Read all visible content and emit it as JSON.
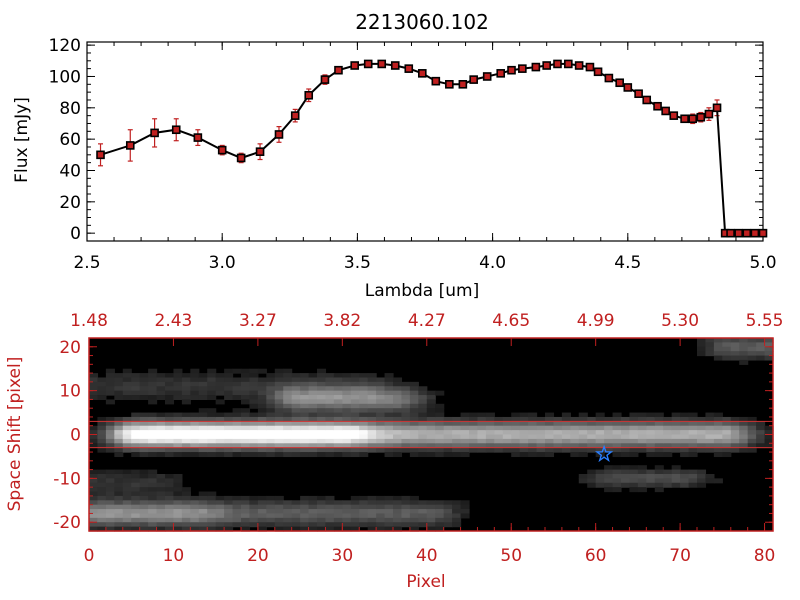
{
  "colors": {
    "axis_black": "#000000",
    "axis_red": "#c02020",
    "series_line": "#000000",
    "series_marker": "#c02020",
    "error_bar": "#c02020",
    "aperture_line": "#d03030",
    "source_star": "#2a7fff",
    "image_background": "#000000"
  },
  "chart_data": [
    {
      "type": "line",
      "title": "2213060.102",
      "xlabel": "Lambda [um]",
      "ylabel": "Flux [mJy]",
      "xlim": [
        2.5,
        5.0
      ],
      "ylim": [
        -5,
        122
      ],
      "x_ticks": [
        "2.5",
        "3.0",
        "3.5",
        "4.0",
        "4.5",
        "5.0"
      ],
      "y_ticks": [
        "0",
        "20",
        "40",
        "60",
        "80",
        "100",
        "120"
      ],
      "grid": false,
      "series": [
        {
          "x": [
            2.55,
            2.66,
            2.75,
            2.83,
            2.91,
            3.0,
            3.07,
            3.14,
            3.21,
            3.27,
            3.32,
            3.38,
            3.43,
            3.49,
            3.54,
            3.59,
            3.64,
            3.69,
            3.74,
            3.79,
            3.84,
            3.89,
            3.93,
            3.98,
            4.03,
            4.07,
            4.11,
            4.16,
            4.2,
            4.24,
            4.28,
            4.32,
            4.36,
            4.39,
            4.43,
            4.47,
            4.5,
            4.54,
            4.57,
            4.61,
            4.64,
            4.67,
            4.71,
            4.74,
            4.77,
            4.8,
            4.83,
            4.86,
            4.88,
            4.91,
            4.94,
            4.97,
            5.0
          ],
          "y": [
            50,
            56,
            64,
            66,
            61,
            53,
            48,
            52,
            63,
            75,
            88,
            98,
            104,
            107,
            108,
            108,
            107,
            105,
            102,
            97,
            95,
            95,
            98,
            100,
            102,
            104,
            105,
            106,
            107,
            108,
            108,
            107,
            106,
            103,
            99,
            96,
            93,
            89,
            85,
            81,
            78,
            75,
            73,
            73,
            74,
            76,
            80,
            0,
            0,
            0,
            0,
            0,
            0
          ],
          "y_err": [
            7,
            10,
            9,
            7,
            5,
            3,
            3,
            5,
            5,
            4,
            4,
            3,
            2,
            2,
            2,
            2,
            2,
            2,
            2,
            2,
            2,
            2,
            2,
            2,
            2,
            2,
            2,
            2,
            2,
            2,
            2,
            2,
            2,
            2,
            2,
            2,
            2,
            2,
            2,
            2,
            2,
            2,
            2,
            3,
            3,
            4,
            5,
            1,
            1,
            1,
            1,
            1,
            1
          ]
        }
      ]
    },
    {
      "type": "heatmap",
      "xlabel": "Pixel",
      "ylabel": "Space Shift [pixel]",
      "xlim": [
        0,
        81
      ],
      "ylim": [
        -22,
        22
      ],
      "x_ticks": [
        "0",
        "10",
        "20",
        "30",
        "40",
        "50",
        "60",
        "70",
        "80"
      ],
      "y_ticks": [
        "-20",
        "-10",
        "0",
        "10",
        "20"
      ],
      "top_axis_ticks": [
        "1.48",
        "2.43",
        "3.27",
        "3.82",
        "4.27",
        "4.65",
        "4.99",
        "5.30",
        "5.55"
      ],
      "aperture_lines_y": [
        3,
        -3
      ],
      "source_marker": {
        "x": 61,
        "y": -4.5
      },
      "blobs": [
        {
          "x0": 5,
          "x1": 75,
          "yc": 0,
          "sy": 2.2,
          "amp": 0.6
        },
        {
          "x0": 7,
          "x1": 30,
          "yc": 0,
          "sy": 2.0,
          "amp": 0.4
        },
        {
          "x0": 25,
          "x1": 36,
          "yc": 8,
          "sy": 2.0,
          "amp": 0.42
        },
        {
          "x0": 0,
          "x1": 40,
          "yc": -18,
          "sy": 2.2,
          "amp": 0.3
        },
        {
          "x0": 0,
          "x1": 12,
          "yc": -18,
          "sy": 2.0,
          "amp": 0.2
        },
        {
          "x0": 0,
          "x1": 32,
          "yc": 11,
          "sy": 2.5,
          "amp": 0.16
        },
        {
          "x0": 62,
          "x1": 70,
          "yc": -10,
          "sy": 1.5,
          "amp": 0.25
        },
        {
          "x0": 76,
          "x1": 81,
          "yc": 20,
          "sy": 2.0,
          "amp": 0.3
        },
        {
          "x0": 0,
          "x1": 8,
          "yc": -11,
          "sy": 2.0,
          "amp": 0.15
        }
      ]
    }
  ]
}
